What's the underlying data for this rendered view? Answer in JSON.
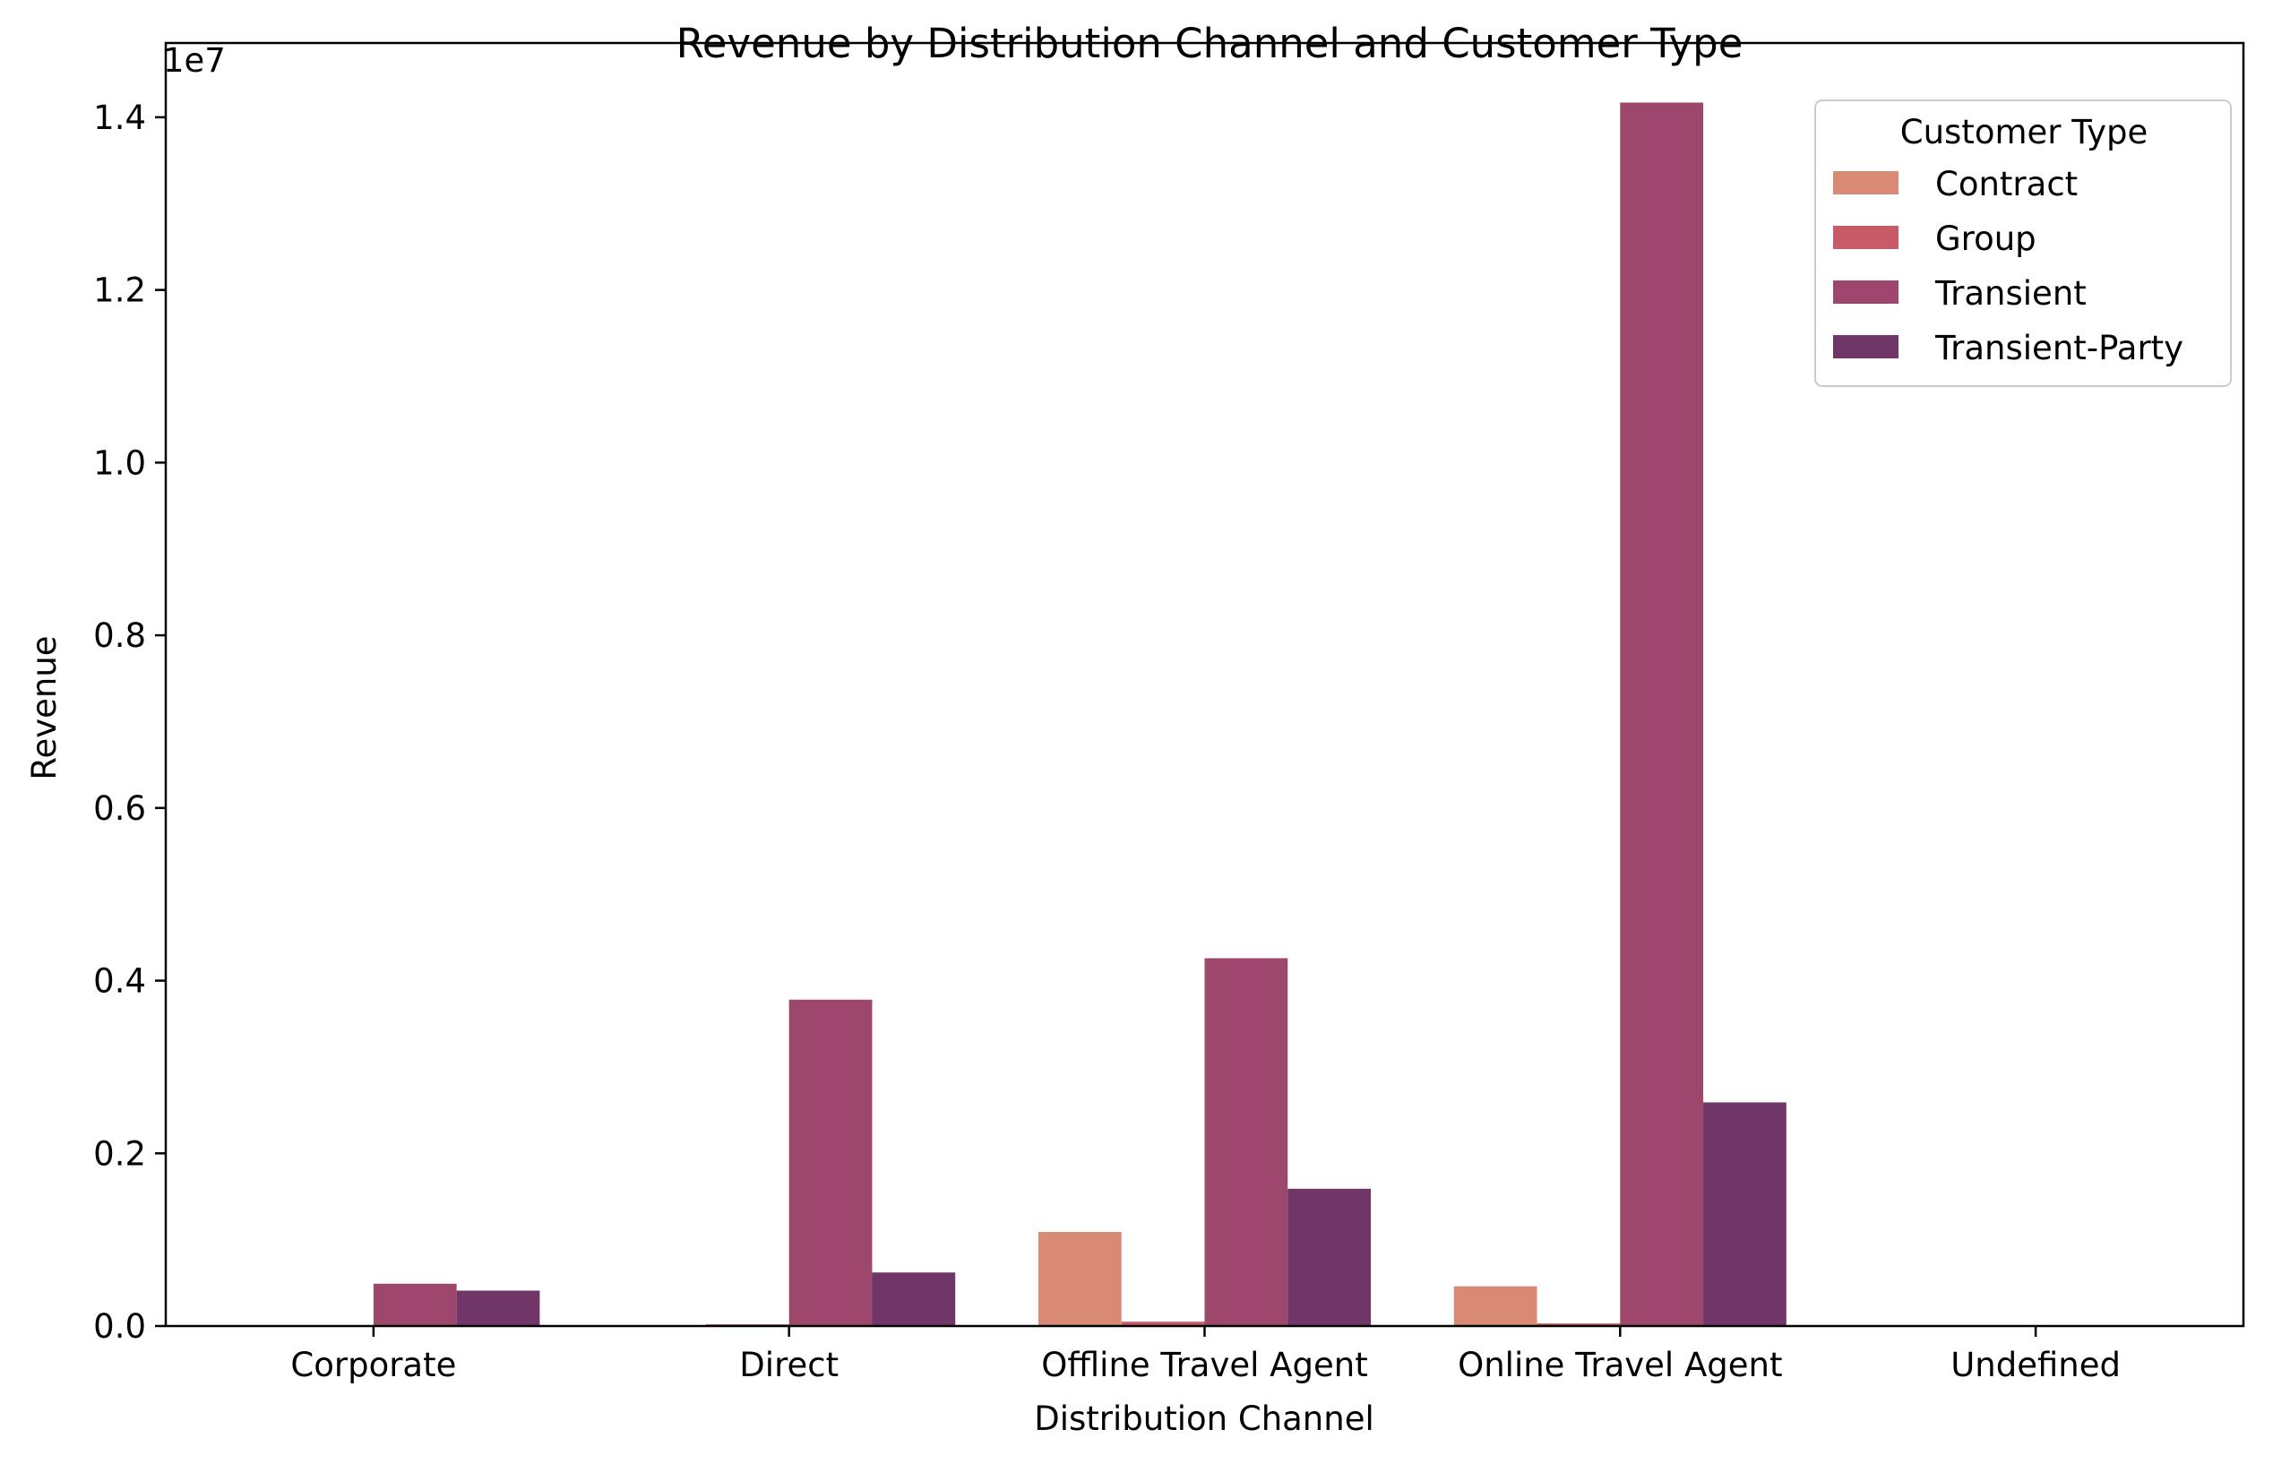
{
  "chart_data": {
    "type": "bar",
    "title": "Revenue by Distribution Channel and Customer Type",
    "xlabel": "Distribution Channel",
    "ylabel": "Revenue",
    "y_offset_text": "1e7",
    "ylim": [
      0,
      14860000
    ],
    "yticks": [
      0,
      2000000,
      4000000,
      6000000,
      8000000,
      10000000,
      12000000,
      14000000
    ],
    "ytick_labels": [
      "0.0",
      "0.2",
      "0.4",
      "0.6",
      "0.8",
      "1.0",
      "1.2",
      "1.4"
    ],
    "categories": [
      "Corporate",
      "Direct",
      "Offline Travel Agent",
      "Online Travel Agent",
      "Undefined"
    ],
    "legend": {
      "title": "Customer Type",
      "position": "top-right"
    },
    "grid": false,
    "series": [
      {
        "name": "Contract",
        "color": "#d88a74",
        "values": [
          0,
          0,
          1090000,
          460000,
          0
        ]
      },
      {
        "name": "Group",
        "color": "#c95b69",
        "values": [
          0,
          20000,
          50000,
          30000,
          0
        ]
      },
      {
        "name": "Transient",
        "color": "#9c476b",
        "values": [
          490000,
          3780000,
          4260000,
          14170000,
          0
        ]
      },
      {
        "name": "Transient-Party",
        "color": "#713668",
        "values": [
          410000,
          620000,
          1590000,
          2590000,
          0
        ]
      }
    ]
  }
}
